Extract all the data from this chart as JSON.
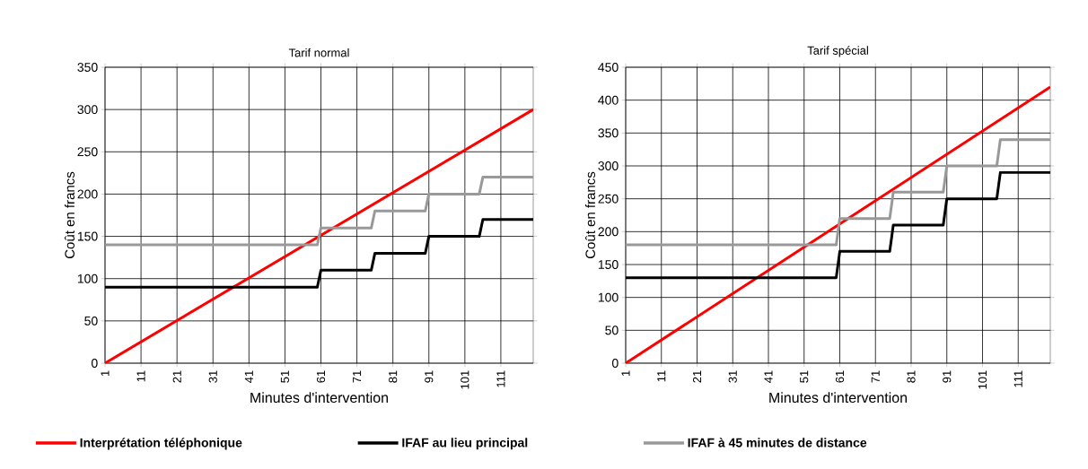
{
  "chart_data": [
    {
      "type": "line",
      "title": "Tarif normal",
      "xlabel": "Minutes d'intervention",
      "ylabel": "Coût en francs",
      "xlim": [
        1,
        120
      ],
      "xticks": [
        1,
        11,
        21,
        31,
        41,
        51,
        61,
        71,
        81,
        91,
        101,
        111
      ],
      "ylim": [
        0,
        350
      ],
      "yticks": [
        0,
        50,
        100,
        150,
        200,
        250,
        300,
        350
      ],
      "grid": true,
      "legend": "bottom",
      "series": [
        {
          "name": "Interprétation téléphonique",
          "color": "#ff0000",
          "x": [
            1,
            120
          ],
          "values": [
            0,
            300
          ]
        },
        {
          "name": "IFAF au lieu principal",
          "color": "#000000",
          "x": [
            1,
            60,
            61,
            75,
            76,
            90,
            91,
            105,
            106,
            120
          ],
          "values": [
            90,
            90,
            110,
            110,
            130,
            130,
            150,
            150,
            170,
            170
          ]
        },
        {
          "name": "IFAF à 45 minutes de distance",
          "color": "#999999",
          "x": [
            1,
            60,
            61,
            75,
            76,
            90,
            91,
            105,
            106,
            120
          ],
          "values": [
            140,
            140,
            160,
            160,
            180,
            180,
            200,
            200,
            220,
            220
          ]
        }
      ]
    },
    {
      "type": "line",
      "title": "Tarif spécial",
      "xlabel": "Minutes d'intervention",
      "ylabel": "Coût en francs",
      "xlim": [
        1,
        120
      ],
      "xticks": [
        1,
        11,
        21,
        31,
        41,
        51,
        61,
        71,
        81,
        91,
        101,
        111
      ],
      "ylim": [
        0,
        450
      ],
      "yticks": [
        0,
        50,
        100,
        150,
        200,
        250,
        300,
        350,
        400,
        450
      ],
      "grid": true,
      "series": [
        {
          "color": "#ff0000",
          "x": [
            1,
            120
          ],
          "values": [
            0,
            420
          ]
        },
        {
          "color": "#000000",
          "x": [
            1,
            60,
            61,
            75,
            76,
            90,
            91,
            105,
            106,
            120
          ],
          "values": [
            130,
            130,
            170,
            170,
            210,
            210,
            250,
            250,
            290,
            290
          ]
        },
        {
          "color": "#999999",
          "x": [
            1,
            60,
            61,
            75,
            76,
            90,
            91,
            105,
            106,
            120
          ],
          "values": [
            180,
            180,
            220,
            220,
            260,
            260,
            300,
            300,
            340,
            340
          ]
        }
      ]
    }
  ]
}
